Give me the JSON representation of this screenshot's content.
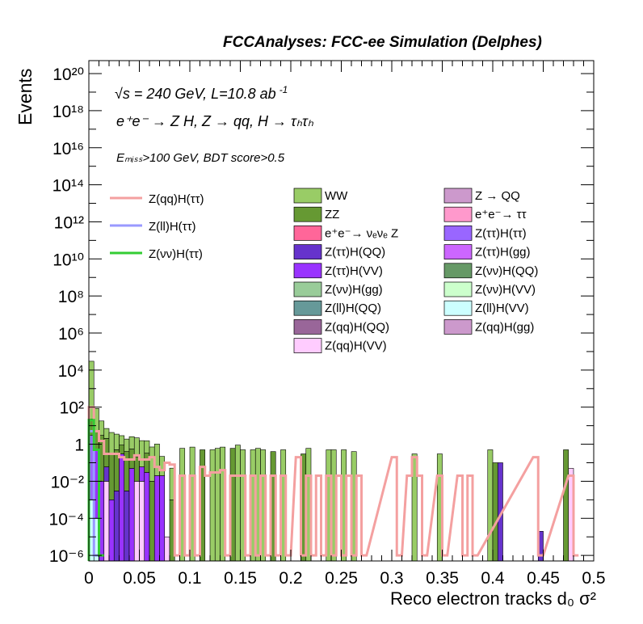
{
  "header": "FCCAnalyses: FCC-ee Simulation (Delphes)",
  "annotations": {
    "sqrt_s_line": "√s = 240 GeV, L=10.8 ab",
    "lumi_exp": "-1",
    "process_line": "e⁺e⁻ → Z H, Z → qq, H → τₕτₕ",
    "selection_line": "Eₘᵢₛₛ>100 GeV, BDT score>0.5"
  },
  "chart_data": {
    "type": "bar",
    "ylabel": "Events",
    "xlabel": "Reco electron tracks d₀ σ²",
    "xlim": [
      0,
      0.5
    ],
    "ylim_log10": [
      -6.3,
      20.7
    ],
    "yscale": "log",
    "x_ticks": [
      "0",
      "0.05",
      "0.1",
      "0.15",
      "0.2",
      "0.25",
      "0.3",
      "0.35",
      "0.4",
      "0.45",
      "0.5"
    ],
    "y_ticks": [
      "10⁻⁶",
      "10⁻⁴",
      "10⁻²",
      "1",
      "10²",
      "10⁴",
      "10⁶",
      "10⁸",
      "10¹⁰",
      "10¹²",
      "10¹⁴",
      "10¹⁶",
      "10¹⁸",
      "10²⁰"
    ],
    "bin_width": 0.005,
    "signals": [
      {
        "name": "Z(qq)H(ττ)",
        "color": "#f4a0a0"
      },
      {
        "name": "Z(ll)H(ττ)",
        "color": "#9999ff"
      },
      {
        "name": "Z(νν)H(ττ)",
        "color": "#33cc33"
      }
    ],
    "backgrounds": [
      {
        "name": "WW",
        "color": "#99cc66"
      },
      {
        "name": "Z → QQ",
        "color": "#cc99cc"
      },
      {
        "name": "ZZ",
        "color": "#669933"
      },
      {
        "name": "e⁺e⁻→ ττ",
        "color": "#ff99cc"
      },
      {
        "name": "e⁺e⁻→ νₑνₑ Z",
        "color": "#ff6699"
      },
      {
        "name": "Z(ττ)H(ττ)",
        "color": "#9966ff"
      },
      {
        "name": "Z(ττ)H(QQ)",
        "color": "#6633cc"
      },
      {
        "name": "Z(ττ)H(gg)",
        "color": "#cc66ff"
      },
      {
        "name": "Z(ττ)H(VV)",
        "color": "#9933ff"
      },
      {
        "name": "Z(νν)H(QQ)",
        "color": "#669966"
      },
      {
        "name": "Z(νν)H(gg)",
        "color": "#99cc99"
      },
      {
        "name": "Z(νν)H(VV)",
        "color": "#ccffcc"
      },
      {
        "name": "Z(ll)H(QQ)",
        "color": "#669999"
      },
      {
        "name": "Z(ll)H(VV)",
        "color": "#ccffff"
      },
      {
        "name": "Z(qq)H(QQ)",
        "color": "#996699"
      },
      {
        "name": "Z(qq)H(gg)",
        "color": "#cc99cc"
      },
      {
        "name": "Z(qq)H(VV)",
        "color": "#ffccff"
      }
    ],
    "stack_bins": [
      {
        "x": 0.0,
        "segments": [
          {
            "c": "#ccffff",
            "v": 0.001
          },
          {
            "c": "#9966ff",
            "v": 3
          },
          {
            "c": "#669933",
            "v": 20
          },
          {
            "c": "#99cc66",
            "v": 30000
          }
        ]
      },
      {
        "x": 0.005,
        "segments": [
          {
            "c": "#ccffff",
            "v": 0.0001
          },
          {
            "c": "#9933ff",
            "v": 0.5
          },
          {
            "c": "#669933",
            "v": 5
          },
          {
            "c": "#99cc66",
            "v": 80
          }
        ]
      },
      {
        "x": 0.01,
        "segments": [
          {
            "c": "#9933ff",
            "v": 0.01
          },
          {
            "c": "#669933",
            "v": 3
          },
          {
            "c": "#99cc66",
            "v": 15
          }
        ]
      },
      {
        "x": 0.015,
        "segments": [
          {
            "c": "#ffccff",
            "v": 0.01
          },
          {
            "c": "#6633cc",
            "v": 0.05
          },
          {
            "c": "#669933",
            "v": 2
          },
          {
            "c": "#99cc66",
            "v": 5
          }
        ]
      },
      {
        "x": 0.02,
        "segments": [
          {
            "c": "#9933ff",
            "v": 0.001
          },
          {
            "c": "#669933",
            "v": 0.3
          },
          {
            "c": "#99cc66",
            "v": 4
          }
        ]
      },
      {
        "x": 0.025,
        "segments": [
          {
            "c": "#6633cc",
            "v": 0.003
          },
          {
            "c": "#669933",
            "v": 0.5
          },
          {
            "c": "#99cc66",
            "v": 3
          }
        ]
      },
      {
        "x": 0.03,
        "segments": [
          {
            "c": "#9933ff",
            "v": 0.3
          },
          {
            "c": "#669933",
            "v": 0.6
          },
          {
            "c": "#99cc66",
            "v": 2
          }
        ]
      },
      {
        "x": 0.035,
        "segments": [
          {
            "c": "#6633cc",
            "v": 0.003
          },
          {
            "c": "#669933",
            "v": 0.4
          },
          {
            "c": "#99cc66",
            "v": 1.5
          }
        ]
      },
      {
        "x": 0.04,
        "segments": [
          {
            "c": "#9933ff",
            "v": 0.05
          },
          {
            "c": "#669933",
            "v": 0.5
          },
          {
            "c": "#99cc66",
            "v": 2
          }
        ]
      },
      {
        "x": 0.045,
        "segments": [
          {
            "c": "#ffccff",
            "v": 0.01
          },
          {
            "c": "#669933",
            "v": 0.2
          },
          {
            "c": "#99cc66",
            "v": 2
          }
        ]
      },
      {
        "x": 0.05,
        "segments": [
          {
            "c": "#ffccff",
            "v": 0.01
          },
          {
            "c": "#9933ff",
            "v": 0.05
          },
          {
            "c": "#99cc66",
            "v": 1.5
          }
        ]
      },
      {
        "x": 0.055,
        "segments": [
          {
            "c": "#9933ff",
            "v": 0.03
          },
          {
            "c": "#669933",
            "v": 0.3
          },
          {
            "c": "#99cc66",
            "v": 1.2
          }
        ]
      },
      {
        "x": 0.06,
        "segments": [
          {
            "c": "#669933",
            "v": 0.01
          },
          {
            "c": "#99cc66",
            "v": 0.7
          }
        ]
      },
      {
        "x": 0.065,
        "segments": [
          {
            "c": "#9933ff",
            "v": 0.02
          },
          {
            "c": "#99cc66",
            "v": 1
          }
        ]
      },
      {
        "x": 0.07,
        "segments": [
          {
            "c": "#9933ff",
            "v": 0.02
          },
          {
            "c": "#99cc66",
            "v": 0.2
          }
        ]
      },
      {
        "x": 0.075,
        "segments": [
          {
            "c": "#ffccff",
            "v": 1e-05
          }
        ]
      },
      {
        "x": 0.08,
        "segments": [
          {
            "c": "#669933",
            "v": 0.001
          },
          {
            "c": "#99cc66",
            "v": 0.05
          }
        ]
      },
      {
        "x": 0.09,
        "segments": [
          {
            "c": "#99cc66",
            "v": 0.6
          }
        ]
      },
      {
        "x": 0.1,
        "segments": [
          {
            "c": "#99cc66",
            "v": 0.7
          }
        ]
      },
      {
        "x": 0.11,
        "segments": [
          {
            "c": "#669933",
            "v": 0.5
          }
        ]
      },
      {
        "x": 0.12,
        "segments": [
          {
            "c": "#99cc66",
            "v": 0.5
          }
        ]
      },
      {
        "x": 0.125,
        "segments": [
          {
            "c": "#99cc66",
            "v": 0.6
          }
        ]
      },
      {
        "x": 0.13,
        "segments": [
          {
            "c": "#99cc66",
            "v": 0.7
          }
        ]
      },
      {
        "x": 0.14,
        "segments": [
          {
            "c": "#669933",
            "v": 0.6
          }
        ]
      },
      {
        "x": 0.145,
        "segments": [
          {
            "c": "#99cc66",
            "v": 0.9
          }
        ]
      },
      {
        "x": 0.15,
        "segments": [
          {
            "c": "#99cc66",
            "v": 0.5
          }
        ]
      },
      {
        "x": 0.16,
        "segments": [
          {
            "c": "#99cc66",
            "v": 0.5
          }
        ]
      },
      {
        "x": 0.165,
        "segments": [
          {
            "c": "#99cc66",
            "v": 0.6
          }
        ]
      },
      {
        "x": 0.17,
        "segments": [
          {
            "c": "#99cc66",
            "v": 0.5
          }
        ]
      },
      {
        "x": 0.18,
        "segments": [
          {
            "c": "#669933",
            "v": 0.4
          }
        ]
      },
      {
        "x": 0.19,
        "segments": [
          {
            "c": "#99cc66",
            "v": 0.5
          }
        ]
      },
      {
        "x": 0.21,
        "segments": [
          {
            "c": "#669933",
            "v": 0.3
          }
        ]
      },
      {
        "x": 0.215,
        "segments": [
          {
            "c": "#99cc66",
            "v": 0.6
          }
        ]
      },
      {
        "x": 0.235,
        "segments": [
          {
            "c": "#99cc66",
            "v": 0.5
          }
        ]
      },
      {
        "x": 0.24,
        "segments": [
          {
            "c": "#99cc66",
            "v": 0.5
          }
        ]
      },
      {
        "x": 0.25,
        "segments": [
          {
            "c": "#99cc66",
            "v": 0.5
          }
        ]
      },
      {
        "x": 0.26,
        "segments": [
          {
            "c": "#99cc66",
            "v": 0.4
          }
        ]
      },
      {
        "x": 0.32,
        "segments": [
          {
            "c": "#99cc66",
            "v": 0.3
          }
        ]
      },
      {
        "x": 0.345,
        "segments": [
          {
            "c": "#99cc66",
            "v": 0.3
          }
        ]
      },
      {
        "x": 0.395,
        "segments": [
          {
            "c": "#99cc66",
            "v": 0.5
          }
        ]
      },
      {
        "x": 0.4,
        "segments": [
          {
            "c": "#669933",
            "v": 0.1
          }
        ]
      },
      {
        "x": 0.405,
        "segments": [
          {
            "c": "#6633cc",
            "v": 0.1
          }
        ]
      },
      {
        "x": 0.445,
        "segments": [
          {
            "c": "#6633cc",
            "v": 2e-05
          }
        ]
      },
      {
        "x": 0.47,
        "segments": [
          {
            "c": "#669933",
            "v": 0.5
          }
        ]
      },
      {
        "x": 0.475,
        "segments": [
          {
            "c": "#ffccff",
            "v": 0.05
          }
        ]
      }
    ],
    "signal_lines": [
      {
        "name": "Z(qq)H(ττ)",
        "color": "#f4a0a0",
        "bins": [
          [
            0.0,
            100
          ],
          [
            0.005,
            5
          ],
          [
            0.01,
            1.5
          ],
          [
            0.015,
            0.3
          ],
          [
            0.02,
            0.3
          ],
          [
            0.025,
            0.3
          ],
          [
            0.03,
            0.2
          ],
          [
            0.035,
            0.15
          ],
          [
            0.04,
            0.15
          ],
          [
            0.045,
            0.25
          ],
          [
            0.05,
            0.15
          ],
          [
            0.055,
            0.15
          ],
          [
            0.06,
            0.2
          ],
          [
            0.065,
            0.06
          ],
          [
            0.07,
            0.04
          ],
          [
            0.075,
            0.1
          ],
          [
            0.08,
            0.08
          ],
          [
            0.085,
            1e-06
          ],
          [
            0.09,
            0.02
          ],
          [
            0.095,
            1e-06
          ],
          [
            0.1,
            0.02
          ],
          [
            0.105,
            1e-06
          ],
          [
            0.11,
            0.06
          ],
          [
            0.115,
            0.02
          ],
          [
            0.12,
            0.03
          ],
          [
            0.125,
            0.03
          ],
          [
            0.13,
            0.04
          ],
          [
            0.135,
            1e-06
          ],
          [
            0.14,
            0.02
          ],
          [
            0.145,
            0.02
          ],
          [
            0.15,
            0.02
          ],
          [
            0.155,
            1e-06
          ],
          [
            0.16,
            0.02
          ],
          [
            0.165,
            1e-06
          ],
          [
            0.17,
            0.02
          ],
          [
            0.175,
            1e-06
          ],
          [
            0.18,
            0.02
          ],
          [
            0.185,
            1e-06
          ],
          [
            0.19,
            0.02
          ],
          [
            0.195,
            1e-06
          ],
          [
            0.205,
            0.2
          ],
          [
            0.21,
            1e-06
          ],
          [
            0.215,
            0.02
          ],
          [
            0.22,
            1e-06
          ],
          [
            0.225,
            0.02
          ],
          [
            0.23,
            1e-06
          ],
          [
            0.235,
            0.02
          ],
          [
            0.24,
            1e-06
          ],
          [
            0.245,
            0.02
          ],
          [
            0.25,
            1e-06
          ],
          [
            0.255,
            0.02
          ],
          [
            0.26,
            1e-06
          ],
          [
            0.265,
            0.02
          ],
          [
            0.27,
            1e-06
          ],
          [
            0.3,
            0.2
          ],
          [
            0.305,
            1e-06
          ],
          [
            0.315,
            0.02
          ],
          [
            0.32,
            0.2
          ],
          [
            0.325,
            0.02
          ],
          [
            0.33,
            1e-06
          ],
          [
            0.345,
            0.02
          ],
          [
            0.35,
            1e-06
          ],
          [
            0.365,
            0.02
          ],
          [
            0.37,
            1e-06
          ],
          [
            0.375,
            0.02
          ],
          [
            0.38,
            1e-06
          ],
          [
            0.44,
            0.2
          ],
          [
            0.445,
            1e-06
          ],
          [
            0.475,
            0.02
          ],
          [
            0.48,
            1e-06
          ]
        ]
      },
      {
        "name": "Z(ll)H(ττ)",
        "color": "#9999ff",
        "bins": [
          [
            0.0,
            5
          ],
          [
            0.005,
            1e-06
          ]
        ]
      },
      {
        "name": "Z(νν)H(ττ)",
        "color": "#33cc33",
        "bins": [
          [
            0.0,
            20
          ],
          [
            0.005,
            0.5
          ],
          [
            0.01,
            1e-06
          ]
        ]
      }
    ]
  }
}
